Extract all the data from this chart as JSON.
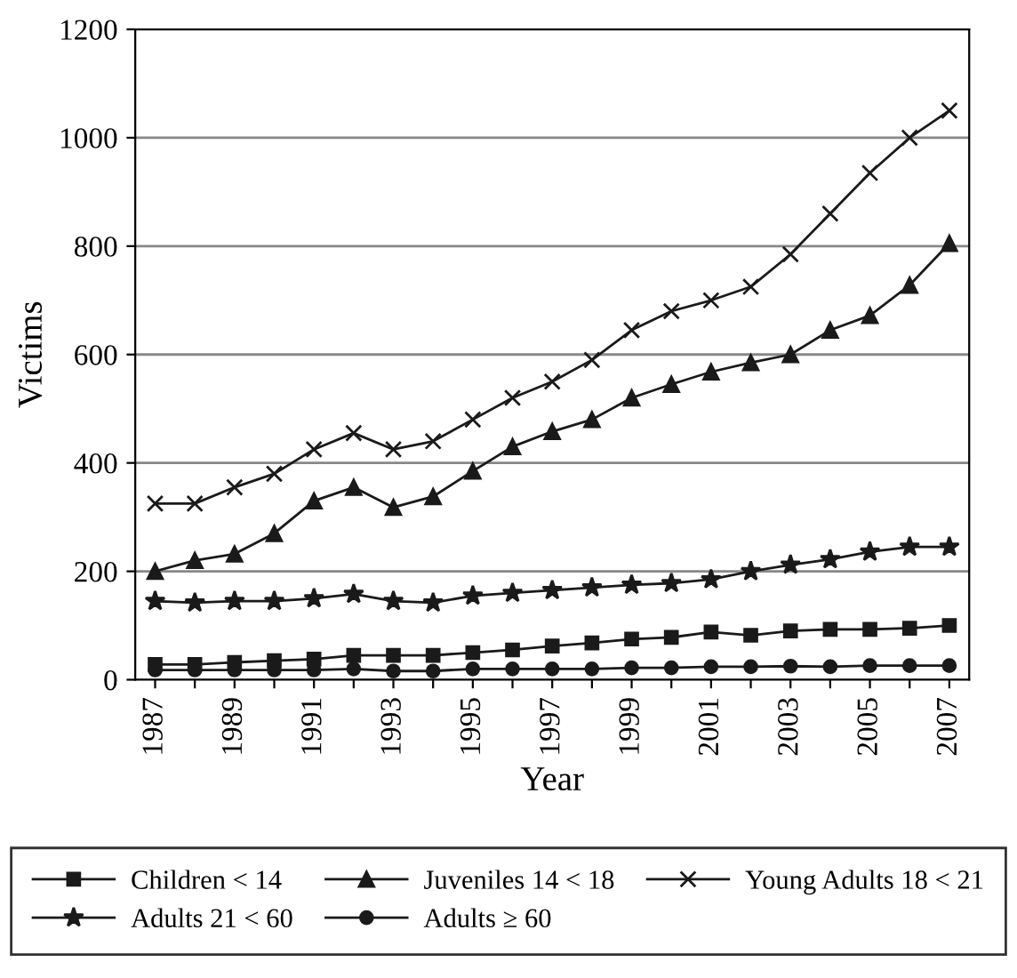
{
  "chart_data": {
    "type": "line",
    "xlabel": "Year",
    "ylabel": "Victims",
    "categories": [
      "1987",
      null,
      "1989",
      null,
      "1991",
      null,
      "1993",
      null,
      "1995",
      null,
      "1997",
      null,
      "1999",
      null,
      "2001",
      null,
      "2003",
      null,
      "2005",
      null,
      "2007"
    ],
    "series": [
      {
        "name": "Children < 14",
        "color": "#1a1a1a",
        "marker": "square",
        "values": [
          28,
          28,
          32,
          35,
          38,
          45,
          45,
          45,
          50,
          55,
          62,
          68,
          75,
          78,
          88,
          82,
          90,
          93,
          93,
          95,
          100
        ]
      },
      {
        "name": "Juveniles 14 < 18",
        "color": "#1a1a1a",
        "marker": "triangle",
        "values": [
          200,
          220,
          232,
          270,
          330,
          355,
          318,
          338,
          385,
          430,
          458,
          480,
          520,
          545,
          568,
          585,
          600,
          645,
          672,
          728,
          805
        ]
      },
      {
        "name": "Young Adults 18 < 21",
        "color": "#1a1a1a",
        "marker": "cross",
        "values": [
          325,
          325,
          355,
          380,
          425,
          455,
          425,
          440,
          480,
          520,
          550,
          590,
          645,
          680,
          700,
          725,
          785,
          860,
          935,
          1000,
          1050
        ]
      },
      {
        "name": "Adults 21 < 60",
        "color": "#1a1a1a",
        "marker": "star",
        "values": [
          145,
          142,
          145,
          145,
          150,
          158,
          145,
          142,
          155,
          160,
          165,
          170,
          175,
          178,
          185,
          200,
          212,
          222,
          236,
          245,
          245
        ]
      },
      {
        "name": "Adults ≥ 60",
        "color": "#1a1a1a",
        "marker": "circle",
        "values": [
          18,
          18,
          18,
          18,
          18,
          20,
          16,
          16,
          20,
          20,
          20,
          20,
          22,
          22,
          24,
          24,
          25,
          24,
          26,
          26,
          26
        ]
      }
    ],
    "ylim": [
      0,
      1200
    ],
    "yticks": [
      0,
      200,
      400,
      600,
      800,
      1000,
      1200
    ],
    "grid": "y",
    "legend": "bottom",
    "line_style": "solid"
  }
}
